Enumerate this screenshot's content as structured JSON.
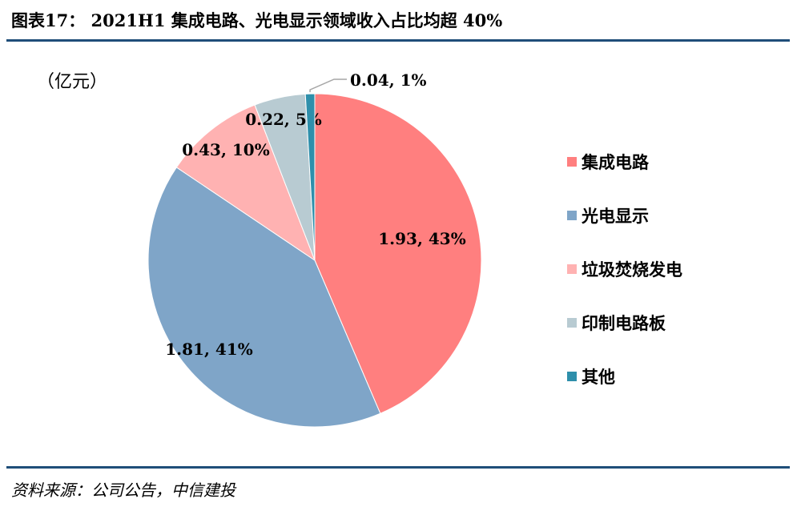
{
  "header": {
    "title": "图表17： 2021H1 集成电路、光电显示领域收入占比均超 40%"
  },
  "footer": {
    "source": "资料来源：公司公告，中信建投"
  },
  "chart_data": {
    "type": "pie",
    "unit_label": "（亿元）",
    "start_angle_deg": 0,
    "direction": "clockwise",
    "slices": [
      {
        "name": "集成电路",
        "value": 1.93,
        "percent": 43,
        "label": "1.93, 43%",
        "color": "#ff7f7f"
      },
      {
        "name": "光电显示",
        "value": 1.81,
        "percent": 41,
        "label": "1.81, 41%",
        "color": "#7fa5c8"
      },
      {
        "name": "垃圾焚烧发电",
        "value": 0.43,
        "percent": 10,
        "label": "0.43, 10%",
        "color": "#ffb2b2"
      },
      {
        "name": "印制电路板",
        "value": 0.22,
        "percent": 5,
        "label": "0.22, 5%",
        "color": "#b8cbd2"
      },
      {
        "name": "其他",
        "value": 0.04,
        "percent": 1,
        "label": "0.04, 1%",
        "color": "#2e8fab"
      }
    ],
    "legend_position": "right"
  }
}
